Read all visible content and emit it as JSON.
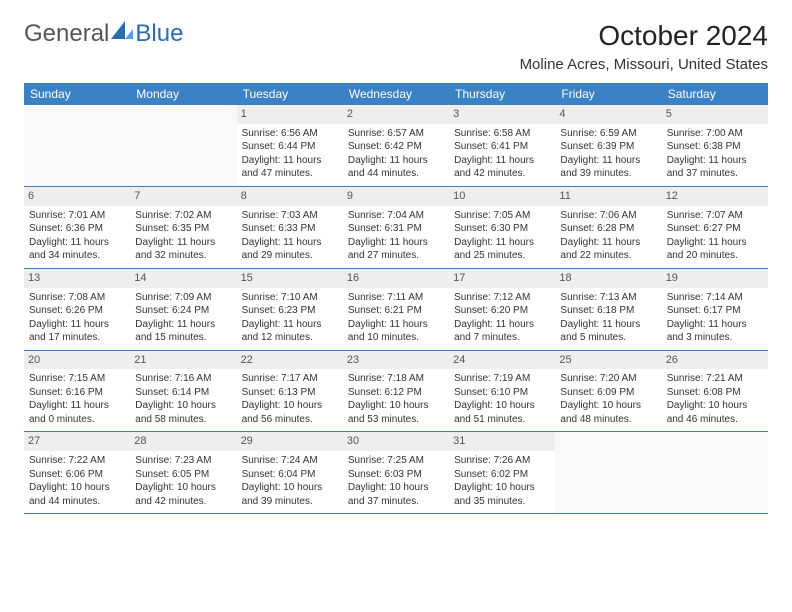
{
  "logo": {
    "text1": "General",
    "text2": "Blue"
  },
  "title": "October 2024",
  "subtitle": "Moline Acres, Missouri, United States",
  "colors": {
    "header_bg": "#3b82c4",
    "header_fg": "#ffffff",
    "daynum_bg": "#eeeeee",
    "border": "#3b82c4"
  },
  "font_sizes": {
    "title": 28,
    "subtitle": 15,
    "day_header": 12,
    "cell": 10
  },
  "day_names": [
    "Sunday",
    "Monday",
    "Tuesday",
    "Wednesday",
    "Thursday",
    "Friday",
    "Saturday"
  ],
  "weeks": [
    [
      null,
      null,
      {
        "n": "1",
        "sr": "Sunrise: 6:56 AM",
        "ss": "Sunset: 6:44 PM",
        "d1": "Daylight: 11 hours",
        "d2": "and 47 minutes."
      },
      {
        "n": "2",
        "sr": "Sunrise: 6:57 AM",
        "ss": "Sunset: 6:42 PM",
        "d1": "Daylight: 11 hours",
        "d2": "and 44 minutes."
      },
      {
        "n": "3",
        "sr": "Sunrise: 6:58 AM",
        "ss": "Sunset: 6:41 PM",
        "d1": "Daylight: 11 hours",
        "d2": "and 42 minutes."
      },
      {
        "n": "4",
        "sr": "Sunrise: 6:59 AM",
        "ss": "Sunset: 6:39 PM",
        "d1": "Daylight: 11 hours",
        "d2": "and 39 minutes."
      },
      {
        "n": "5",
        "sr": "Sunrise: 7:00 AM",
        "ss": "Sunset: 6:38 PM",
        "d1": "Daylight: 11 hours",
        "d2": "and 37 minutes."
      }
    ],
    [
      {
        "n": "6",
        "sr": "Sunrise: 7:01 AM",
        "ss": "Sunset: 6:36 PM",
        "d1": "Daylight: 11 hours",
        "d2": "and 34 minutes."
      },
      {
        "n": "7",
        "sr": "Sunrise: 7:02 AM",
        "ss": "Sunset: 6:35 PM",
        "d1": "Daylight: 11 hours",
        "d2": "and 32 minutes."
      },
      {
        "n": "8",
        "sr": "Sunrise: 7:03 AM",
        "ss": "Sunset: 6:33 PM",
        "d1": "Daylight: 11 hours",
        "d2": "and 29 minutes."
      },
      {
        "n": "9",
        "sr": "Sunrise: 7:04 AM",
        "ss": "Sunset: 6:31 PM",
        "d1": "Daylight: 11 hours",
        "d2": "and 27 minutes."
      },
      {
        "n": "10",
        "sr": "Sunrise: 7:05 AM",
        "ss": "Sunset: 6:30 PM",
        "d1": "Daylight: 11 hours",
        "d2": "and 25 minutes."
      },
      {
        "n": "11",
        "sr": "Sunrise: 7:06 AM",
        "ss": "Sunset: 6:28 PM",
        "d1": "Daylight: 11 hours",
        "d2": "and 22 minutes."
      },
      {
        "n": "12",
        "sr": "Sunrise: 7:07 AM",
        "ss": "Sunset: 6:27 PM",
        "d1": "Daylight: 11 hours",
        "d2": "and 20 minutes."
      }
    ],
    [
      {
        "n": "13",
        "sr": "Sunrise: 7:08 AM",
        "ss": "Sunset: 6:26 PM",
        "d1": "Daylight: 11 hours",
        "d2": "and 17 minutes."
      },
      {
        "n": "14",
        "sr": "Sunrise: 7:09 AM",
        "ss": "Sunset: 6:24 PM",
        "d1": "Daylight: 11 hours",
        "d2": "and 15 minutes."
      },
      {
        "n": "15",
        "sr": "Sunrise: 7:10 AM",
        "ss": "Sunset: 6:23 PM",
        "d1": "Daylight: 11 hours",
        "d2": "and 12 minutes."
      },
      {
        "n": "16",
        "sr": "Sunrise: 7:11 AM",
        "ss": "Sunset: 6:21 PM",
        "d1": "Daylight: 11 hours",
        "d2": "and 10 minutes."
      },
      {
        "n": "17",
        "sr": "Sunrise: 7:12 AM",
        "ss": "Sunset: 6:20 PM",
        "d1": "Daylight: 11 hours",
        "d2": "and 7 minutes."
      },
      {
        "n": "18",
        "sr": "Sunrise: 7:13 AM",
        "ss": "Sunset: 6:18 PM",
        "d1": "Daylight: 11 hours",
        "d2": "and 5 minutes."
      },
      {
        "n": "19",
        "sr": "Sunrise: 7:14 AM",
        "ss": "Sunset: 6:17 PM",
        "d1": "Daylight: 11 hours",
        "d2": "and 3 minutes."
      }
    ],
    [
      {
        "n": "20",
        "sr": "Sunrise: 7:15 AM",
        "ss": "Sunset: 6:16 PM",
        "d1": "Daylight: 11 hours",
        "d2": "and 0 minutes."
      },
      {
        "n": "21",
        "sr": "Sunrise: 7:16 AM",
        "ss": "Sunset: 6:14 PM",
        "d1": "Daylight: 10 hours",
        "d2": "and 58 minutes."
      },
      {
        "n": "22",
        "sr": "Sunrise: 7:17 AM",
        "ss": "Sunset: 6:13 PM",
        "d1": "Daylight: 10 hours",
        "d2": "and 56 minutes."
      },
      {
        "n": "23",
        "sr": "Sunrise: 7:18 AM",
        "ss": "Sunset: 6:12 PM",
        "d1": "Daylight: 10 hours",
        "d2": "and 53 minutes."
      },
      {
        "n": "24",
        "sr": "Sunrise: 7:19 AM",
        "ss": "Sunset: 6:10 PM",
        "d1": "Daylight: 10 hours",
        "d2": "and 51 minutes."
      },
      {
        "n": "25",
        "sr": "Sunrise: 7:20 AM",
        "ss": "Sunset: 6:09 PM",
        "d1": "Daylight: 10 hours",
        "d2": "and 48 minutes."
      },
      {
        "n": "26",
        "sr": "Sunrise: 7:21 AM",
        "ss": "Sunset: 6:08 PM",
        "d1": "Daylight: 10 hours",
        "d2": "and 46 minutes."
      }
    ],
    [
      {
        "n": "27",
        "sr": "Sunrise: 7:22 AM",
        "ss": "Sunset: 6:06 PM",
        "d1": "Daylight: 10 hours",
        "d2": "and 44 minutes."
      },
      {
        "n": "28",
        "sr": "Sunrise: 7:23 AM",
        "ss": "Sunset: 6:05 PM",
        "d1": "Daylight: 10 hours",
        "d2": "and 42 minutes."
      },
      {
        "n": "29",
        "sr": "Sunrise: 7:24 AM",
        "ss": "Sunset: 6:04 PM",
        "d1": "Daylight: 10 hours",
        "d2": "and 39 minutes."
      },
      {
        "n": "30",
        "sr": "Sunrise: 7:25 AM",
        "ss": "Sunset: 6:03 PM",
        "d1": "Daylight: 10 hours",
        "d2": "and 37 minutes."
      },
      {
        "n": "31",
        "sr": "Sunrise: 7:26 AM",
        "ss": "Sunset: 6:02 PM",
        "d1": "Daylight: 10 hours",
        "d2": "and 35 minutes."
      },
      null,
      null
    ]
  ]
}
